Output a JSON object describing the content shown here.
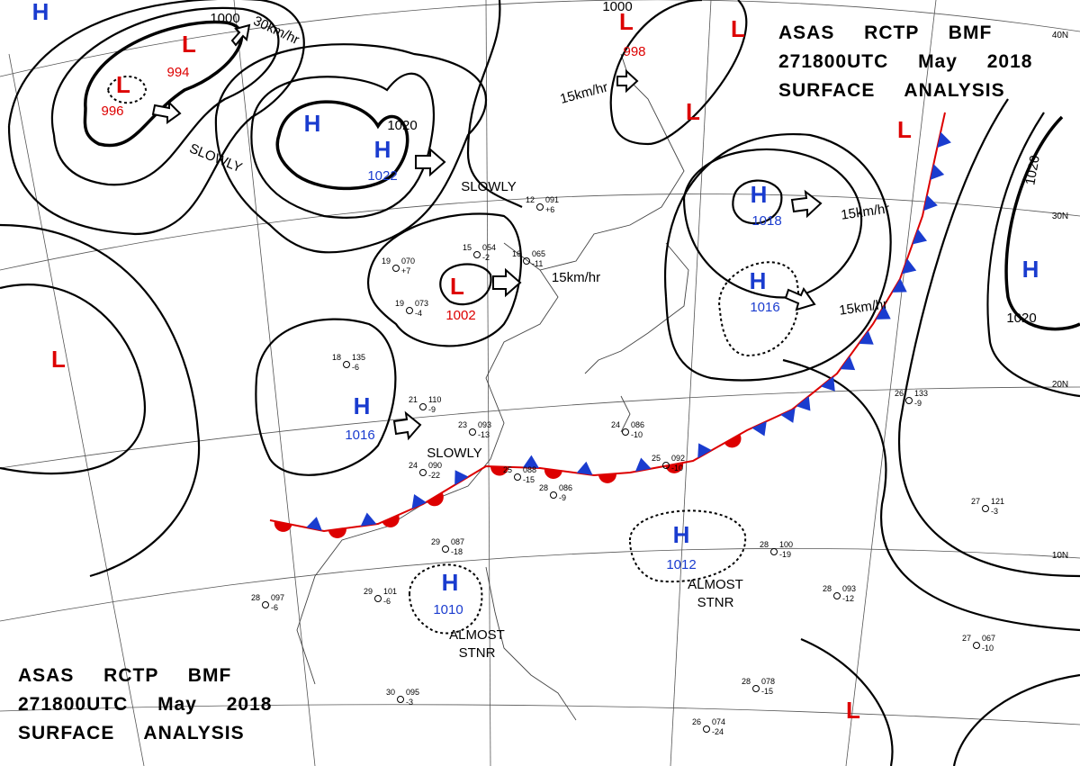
{
  "header": {
    "lines": [
      "ASAS RCTP BMF",
      "271800UTC May 2018",
      "SURFACE ANALYSIS"
    ]
  },
  "footer": {
    "lines": [
      "ASAS RCTP BMF",
      "271800UTC May 2018",
      "SURFACE ANALYSIS"
    ]
  },
  "latitude_labels": [
    "40N",
    "30N",
    "20N",
    "10N"
  ],
  "pressure_centers": [
    {
      "symbol": "H"
    },
    {
      "symbol": "L",
      "pressure": "994"
    },
    {
      "symbol": "L",
      "pressure": "996"
    },
    {
      "symbol": "H"
    },
    {
      "symbol": "H",
      "pressure": "1022"
    },
    {
      "symbol": "L",
      "pressure": "998"
    },
    {
      "symbol": "L"
    },
    {
      "symbol": "L"
    },
    {
      "symbol": "L"
    },
    {
      "symbol": "H",
      "pressure": "1018"
    },
    {
      "symbol": "H",
      "pressure": "1016"
    },
    {
      "symbol": "H"
    },
    {
      "symbol": "L",
      "pressure": "1002"
    },
    {
      "symbol": "L"
    },
    {
      "symbol": "H",
      "pressure": "1016"
    },
    {
      "symbol": "H",
      "pressure": "1012"
    },
    {
      "symbol": "H",
      "pressure": "1010"
    },
    {
      "symbol": "L"
    }
  ],
  "isobar_labels": [
    "1000",
    "1020",
    "1020",
    "1020",
    "1000"
  ],
  "motion_labels": [
    {
      "text": "30km/hr"
    },
    {
      "text": "SLOWLY"
    },
    {
      "text": "SLOWLY"
    },
    {
      "text": "15km/hr"
    },
    {
      "text": "15km/hr"
    },
    {
      "text": "15km/hr"
    },
    {
      "text": "15km/hr"
    },
    {
      "text": "SLOWLY"
    },
    {
      "text": "ALMOST STNR"
    },
    {
      "text": "ALMOST STNR"
    }
  ],
  "stations": [
    {
      "temperature": "21",
      "pressure": "110",
      "tendency": "-9"
    },
    {
      "temperature": "23",
      "pressure": "093",
      "tendency": "-13"
    },
    {
      "temperature": "24",
      "pressure": "086",
      "tendency": "-10"
    },
    {
      "temperature": "25",
      "pressure": "092",
      "tendency": "-10"
    },
    {
      "temperature": "24",
      "pressure": "090",
      "tendency": "-22"
    },
    {
      "temperature": "25",
      "pressure": "088",
      "tendency": "-15"
    },
    {
      "temperature": "28",
      "pressure": "086",
      "tendency": "-9"
    },
    {
      "temperature": "29",
      "pressure": "087",
      "tendency": "-18"
    },
    {
      "temperature": "29",
      "pressure": "101",
      "tendency": "-6"
    },
    {
      "temperature": "28",
      "pressure": "097",
      "tendency": "-6"
    },
    {
      "temperature": "26",
      "pressure": "133",
      "tendency": "-9"
    },
    {
      "temperature": "27",
      "pressure": "121",
      "tendency": "-3"
    },
    {
      "temperature": "27",
      "pressure": "067",
      "tendency": "-10"
    },
    {
      "temperature": "28",
      "pressure": "078",
      "tendency": "-15"
    },
    {
      "temperature": "26",
      "pressure": "074",
      "tendency": "-24"
    },
    {
      "temperature": "30",
      "pressure": "095",
      "tendency": "-3"
    },
    {
      "temperature": "28",
      "pressure": "100",
      "tendency": "-19"
    },
    {
      "temperature": "28",
      "pressure": "093",
      "tendency": "-12"
    },
    {
      "temperature": "18",
      "pressure": "135",
      "tendency": "-6"
    },
    {
      "temperature": "19",
      "pressure": "070",
      "tendency": "+7"
    },
    {
      "temperature": "19",
      "pressure": "073",
      "tendency": "-4"
    },
    {
      "temperature": "15",
      "pressure": "054",
      "tendency": "-2"
    },
    {
      "temperature": "16",
      "pressure": "065",
      "tendency": "-11"
    },
    {
      "temperature": "12",
      "pressure": "091",
      "tendency": "+6"
    }
  ]
}
